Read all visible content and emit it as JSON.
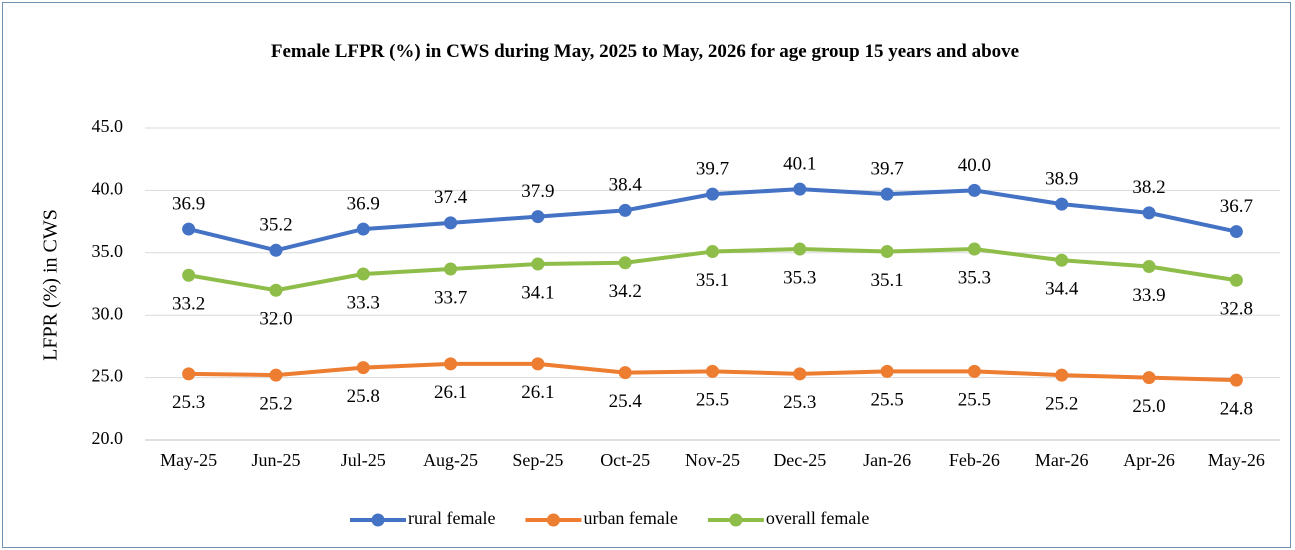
{
  "chart_data": {
    "type": "line",
    "title": "Female LFPR (%) in CWS during May, 2025 to May, 2026 for age group 15 years and above",
    "y_label": "LFPR (%) in CWS",
    "categories": [
      "May-25",
      "Jun-25",
      "Jul-25",
      "Aug-25",
      "Sep-25",
      "Oct-25",
      "Nov-25",
      "Dec-25",
      "Jan-26",
      "Feb-26",
      "Mar-26",
      "Apr-26",
      "May-26"
    ],
    "series": [
      {
        "name": "rural female",
        "color": "#4472c4",
        "values": [
          36.9,
          35.2,
          36.9,
          37.4,
          37.9,
          38.4,
          39.7,
          40.1,
          39.7,
          40.0,
          38.9,
          38.2,
          36.7
        ],
        "value_labels": [
          "36.9",
          "35.2",
          "36.9",
          "37.4",
          "37.9",
          "38.4",
          "39.7",
          "40.1",
          "39.7",
          "40.0",
          "38.9",
          "38.2",
          "36.7"
        ]
      },
      {
        "name": "urban female",
        "color": "#ed7d31",
        "values": [
          25.3,
          25.2,
          25.8,
          26.1,
          26.1,
          25.4,
          25.5,
          25.3,
          25.5,
          25.5,
          25.2,
          25.0,
          24.8
        ],
        "value_labels": [
          "25.3",
          "25.2",
          "25.8",
          "26.1",
          "26.1",
          "25.4",
          "25.5",
          "25.3",
          "25.5",
          "25.5",
          "25.2",
          "25.0",
          "24.8"
        ]
      },
      {
        "name": "overall female",
        "color": "#8fbd4a",
        "values": [
          33.2,
          32.0,
          33.3,
          33.7,
          34.1,
          34.2,
          35.1,
          35.3,
          35.1,
          35.3,
          34.4,
          33.9,
          32.8
        ],
        "value_labels": [
          "33.2",
          "32.0",
          "33.3",
          "33.7",
          "34.1",
          "34.2",
          "35.1",
          "35.3",
          "35.1",
          "35.3",
          "34.4",
          "33.9",
          "32.8"
        ]
      }
    ],
    "ylim": [
      20,
      45
    ],
    "yticks": [
      {
        "value": 20,
        "label": "20.0"
      },
      {
        "value": 25,
        "label": "25.0"
      },
      {
        "value": 30,
        "label": "30.0"
      },
      {
        "value": 35,
        "label": "35.0"
      },
      {
        "value": 40,
        "label": "40.0"
      },
      {
        "value": 45,
        "label": "45.0"
      }
    ],
    "grid": true,
    "legend": "bottom"
  }
}
